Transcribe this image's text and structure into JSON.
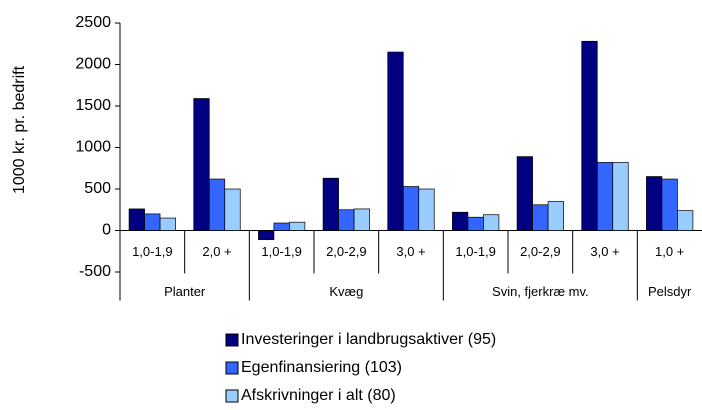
{
  "chart_data": {
    "type": "bar",
    "y_label": "1000 kr. pr. bedrift",
    "groups": [
      {
        "name": "Planter",
        "categories": [
          "1,0-1,9",
          "2,0 +"
        ]
      },
      {
        "name": "Kvæg",
        "categories": [
          "1,0-1,9",
          "2,0-2,9",
          "3,0 +"
        ]
      },
      {
        "name": "Svin, fjerkræ mv.",
        "categories": [
          "1,0-1,9",
          "2,0-2,9",
          "3,0 +"
        ]
      },
      {
        "name": "Pelsdyr",
        "categories": [
          "1,0 +"
        ]
      }
    ],
    "series": [
      {
        "name": "Investeringer i landbrugsaktiver (95)",
        "color": "#000080",
        "values": [
          260,
          1590,
          -110,
          630,
          2150,
          220,
          890,
          2280,
          650
        ]
      },
      {
        "name": "Egenfinansiering (103)",
        "color": "#3366ff",
        "values": [
          200,
          620,
          90,
          250,
          530,
          160,
          310,
          820,
          620
        ]
      },
      {
        "name": "Afskrivninger i alt (80)",
        "color": "#99ccff",
        "values": [
          150,
          500,
          100,
          260,
          500,
          190,
          350,
          820,
          240
        ]
      }
    ],
    "ylim": [
      -500,
      2500
    ],
    "yticks": [
      -500,
      0,
      500,
      1000,
      1500,
      2000,
      2500
    ]
  }
}
